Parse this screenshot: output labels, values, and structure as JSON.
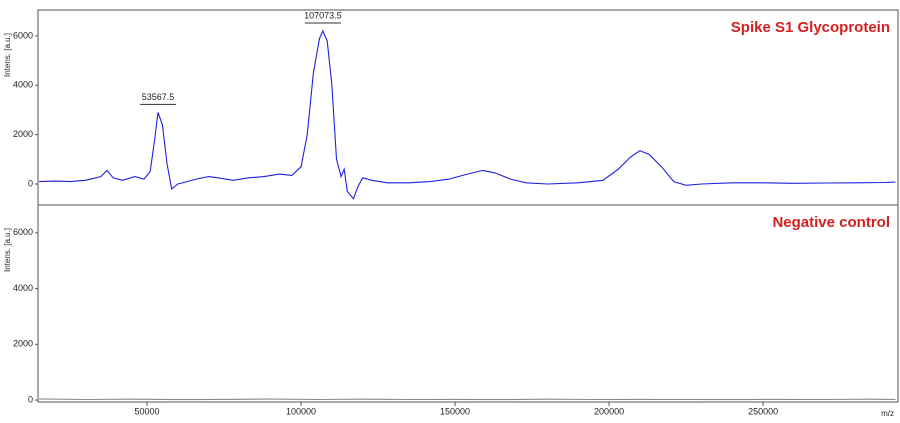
{
  "chart_data": [
    {
      "type": "line",
      "title": "Spike S1 Glycoprotein",
      "ylabel": "Intens. [a.u.]",
      "color": "#1f1fe0",
      "x": [
        15000,
        20000,
        25000,
        30000,
        35000,
        37000,
        39000,
        42000,
        46000,
        49000,
        51000,
        52500,
        53567.5,
        55000,
        56500,
        58000,
        60000,
        63000,
        66000,
        70000,
        73000,
        78000,
        83000,
        88000,
        93000,
        97000,
        100000,
        102000,
        104000,
        106000,
        107073.5,
        108500,
        110000,
        111500,
        113000,
        114000,
        115000,
        117000,
        118500,
        120000,
        123000,
        128000,
        135000,
        142000,
        148000,
        154000,
        159000,
        163000,
        168000,
        173000,
        180000,
        190000,
        198000,
        203000,
        207000,
        210000,
        213000,
        217000,
        221000,
        225000,
        230000,
        240000,
        250000,
        260000,
        270000,
        280000,
        290000,
        293000
      ],
      "values": [
        100,
        120,
        100,
        150,
        300,
        550,
        250,
        150,
        300,
        200,
        500,
        1800,
        2900,
        2400,
        800,
        -200,
        0,
        100,
        200,
        300,
        250,
        150,
        250,
        300,
        400,
        350,
        700,
        2000,
        4500,
        5900,
        6200,
        5800,
        4000,
        1000,
        300,
        600,
        -300,
        -600,
        -100,
        250,
        150,
        50,
        50,
        100,
        200,
        400,
        550,
        450,
        200,
        50,
        0,
        50,
        150,
        600,
        1100,
        1350,
        1200,
        700,
        100,
        -50,
        0,
        50,
        50,
        30,
        40,
        50,
        60,
        80
      ],
      "annotations": [
        {
          "label": "53567.5",
          "x": 53567.5,
          "y": 2900
        },
        {
          "label": "107073.5",
          "x": 107073.5,
          "y": 6200
        }
      ],
      "xlim": [
        14600,
        293800
      ],
      "ylim": [
        -850,
        7050
      ],
      "yticks": [
        0,
        2000,
        4000,
        6000
      ]
    },
    {
      "type": "line",
      "title": "Negative control",
      "ylabel": "Intens. [a.u.]",
      "xlabel": "m/z",
      "color": "#8a8a8a",
      "x": [
        15000,
        30000,
        45000,
        60000,
        75000,
        90000,
        105000,
        120000,
        135000,
        150000,
        165000,
        180000,
        195000,
        210000,
        225000,
        240000,
        255000,
        270000,
        285000,
        293000
      ],
      "values": [
        40,
        20,
        30,
        15,
        25,
        35,
        20,
        30,
        20,
        25,
        15,
        30,
        20,
        25,
        20,
        15,
        25,
        20,
        30,
        20
      ],
      "xlim": [
        14600,
        293800
      ],
      "ylim": [
        -70,
        7000
      ],
      "yticks": [
        0,
        2000,
        4000,
        6000
      ],
      "xticks": [
        50000,
        100000,
        150000,
        200000,
        250000
      ]
    }
  ]
}
